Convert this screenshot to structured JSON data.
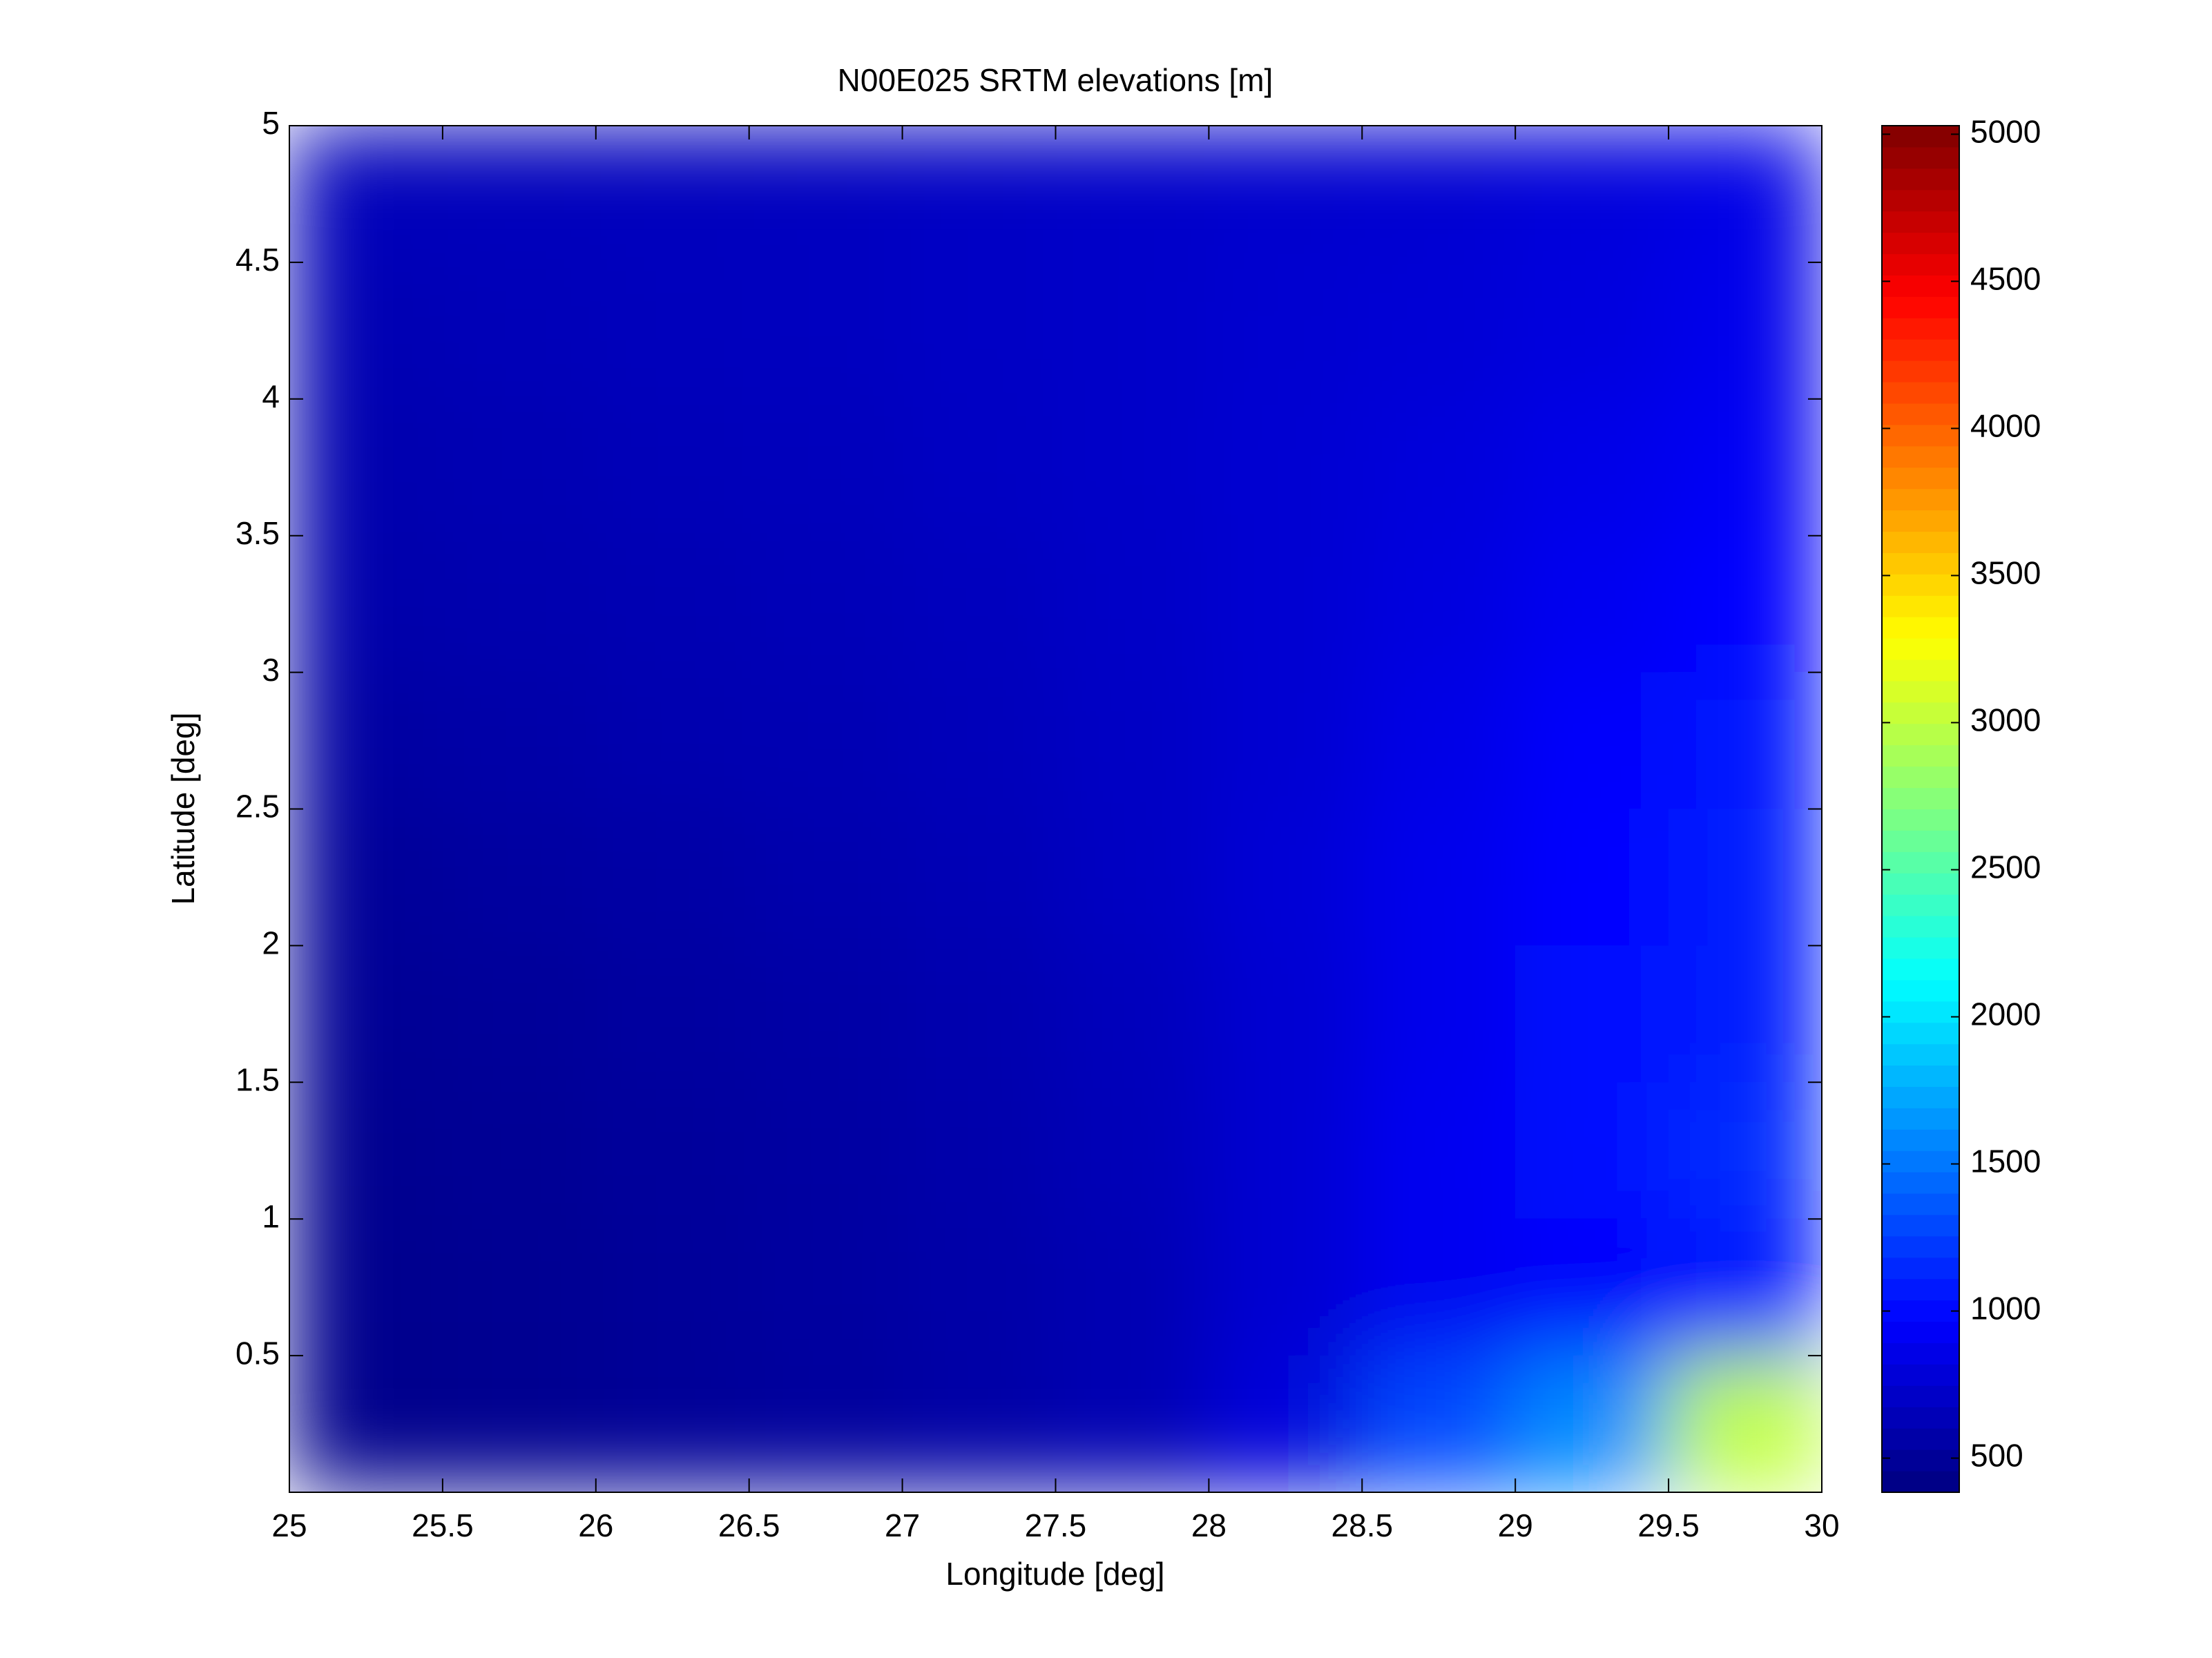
{
  "chart_data": {
    "type": "heatmap",
    "title": "N00E025 SRTM elevations [m]",
    "xlabel": "Longitude [deg]",
    "ylabel": "Latitude [deg]",
    "xlim": [
      25,
      30
    ],
    "ylim": [
      0,
      5
    ],
    "xticks": [
      25,
      25.5,
      26,
      26.5,
      27,
      27.5,
      28,
      28.5,
      29,
      29.5,
      30
    ],
    "yticks": [
      0.5,
      1,
      1.5,
      2,
      2.5,
      3,
      3.5,
      4,
      4.5,
      5
    ],
    "colormap": "jet",
    "clim": [
      384,
      5029
    ],
    "cticks": [
      500,
      1000,
      1500,
      2000,
      2500,
      3000,
      3500,
      4000,
      4500,
      5000
    ],
    "z": [
      [
        650,
        660,
        670,
        680,
        700,
        720,
        740,
        760,
        800,
        850
      ],
      [
        620,
        640,
        660,
        680,
        700,
        720,
        750,
        780,
        820,
        880
      ],
      [
        600,
        620,
        640,
        660,
        690,
        720,
        760,
        800,
        860,
        920
      ],
      [
        580,
        600,
        620,
        640,
        670,
        710,
        760,
        820,
        900,
        980
      ],
      [
        540,
        570,
        600,
        620,
        650,
        700,
        760,
        850,
        950,
        1050
      ],
      [
        500,
        530,
        560,
        590,
        630,
        690,
        780,
        880,
        980,
        1100
      ],
      [
        480,
        500,
        530,
        560,
        600,
        660,
        760,
        880,
        1000,
        1100
      ],
      [
        460,
        480,
        510,
        540,
        580,
        640,
        760,
        900,
        1000,
        1150
      ],
      [
        450,
        470,
        500,
        530,
        570,
        620,
        760,
        900,
        950,
        1050
      ],
      [
        440,
        460,
        490,
        520,
        560,
        620,
        800,
        1300,
        1600,
        3000
      ]
    ]
  }
}
